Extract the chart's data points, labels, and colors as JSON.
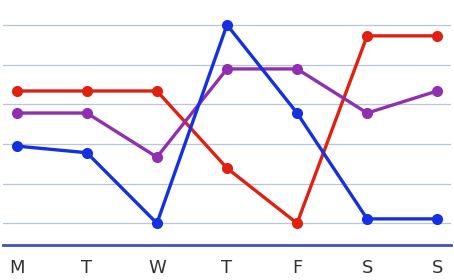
{
  "days": [
    "M",
    "T",
    "W",
    "T",
    "F",
    "S",
    "S"
  ],
  "red": [
    7.0,
    7.0,
    7.0,
    3.5,
    1.0,
    9.5,
    9.5
  ],
  "purple": [
    6.0,
    6.0,
    4.0,
    8.0,
    8.0,
    6.0,
    7.0
  ],
  "blue": [
    4.5,
    4.2,
    1.0,
    10.0,
    6.0,
    1.2,
    1.2
  ],
  "red_color": "#e02010",
  "purple_color": "#9030b0",
  "blue_color": "#1530e0",
  "bg_color": "#ffffff",
  "grid_color": "#b8c4e0",
  "axis_color": "#4050c8",
  "label_color": "#333333",
  "ylim": [
    0,
    11
  ],
  "xlim": [
    -0.2,
    6.2
  ],
  "linewidth": 2.4,
  "markersize": 8,
  "n_gridlines": 6,
  "figsize": [
    4.54,
    2.8
  ],
  "dpi": 100
}
